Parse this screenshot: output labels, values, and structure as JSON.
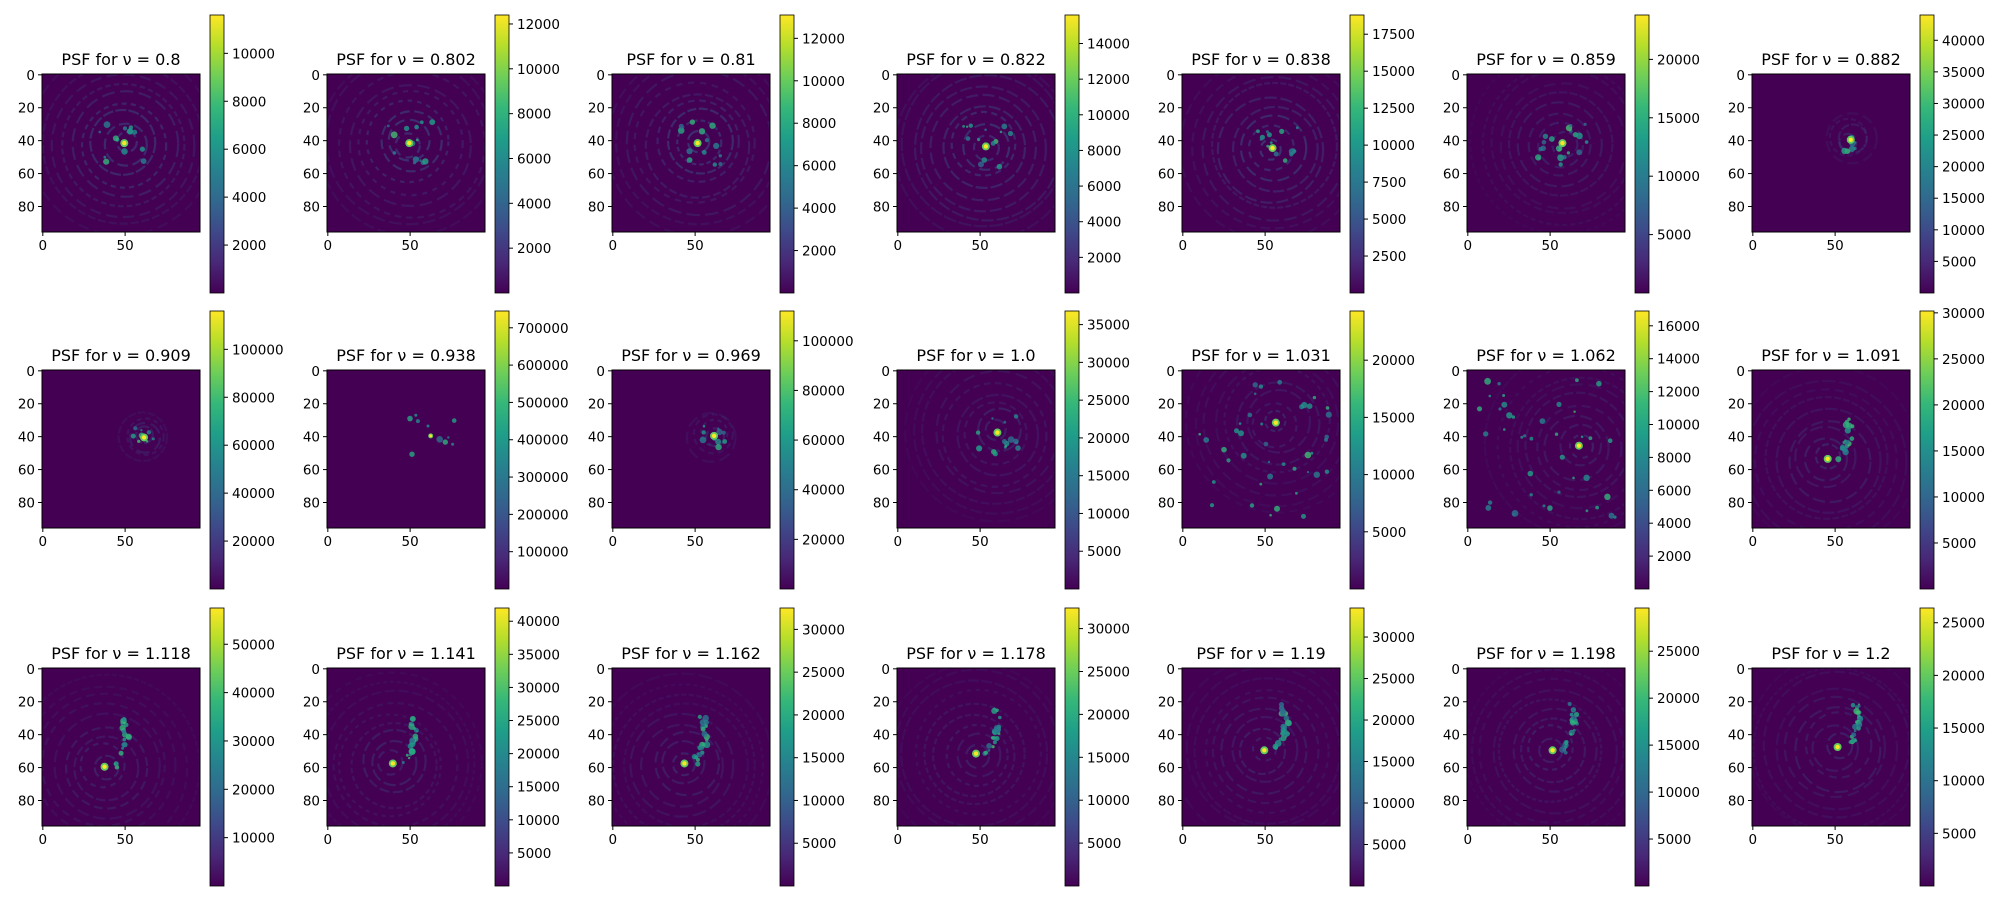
{
  "chart_data": [
    {
      "type": "heatmap",
      "title": "PSF for ν = 0.8",
      "xticks": [
        "0",
        "50"
      ],
      "yticks": [
        "0",
        "20",
        "40",
        "60",
        "80"
      ],
      "colorbar_ticks": [
        "2000",
        "4000",
        "6000",
        "8000",
        "10000"
      ],
      "vmin": 0,
      "vmax": 11600,
      "peak": [
        50,
        42
      ],
      "pattern": "rings"
    },
    {
      "type": "heatmap",
      "title": "PSF for ν = 0.802",
      "xticks": [
        "0",
        "50"
      ],
      "yticks": [
        "0",
        "20",
        "40",
        "60",
        "80"
      ],
      "colorbar_ticks": [
        "2000",
        "4000",
        "6000",
        "8000",
        "10000",
        "12000"
      ],
      "vmin": 0,
      "vmax": 12400,
      "peak": [
        50,
        42
      ],
      "pattern": "rings"
    },
    {
      "type": "heatmap",
      "title": "PSF for ν = 0.81",
      "xticks": [
        "0",
        "50"
      ],
      "yticks": [
        "0",
        "20",
        "40",
        "60",
        "80"
      ],
      "colorbar_ticks": [
        "2000",
        "4000",
        "6000",
        "8000",
        "10000",
        "12000"
      ],
      "vmin": 0,
      "vmax": 13100,
      "peak": [
        52,
        42
      ],
      "pattern": "rings"
    },
    {
      "type": "heatmap",
      "title": "PSF for ν = 0.822",
      "xticks": [
        "0",
        "50"
      ],
      "yticks": [
        "0",
        "20",
        "40",
        "60",
        "80"
      ],
      "colorbar_ticks": [
        "2000",
        "4000",
        "6000",
        "8000",
        "10000",
        "12000",
        "14000"
      ],
      "vmin": 0,
      "vmax": 15600,
      "peak": [
        54,
        44
      ],
      "pattern": "rings"
    },
    {
      "type": "heatmap",
      "title": "PSF for ν = 0.838",
      "xticks": [
        "0",
        "50"
      ],
      "yticks": [
        "0",
        "20",
        "40",
        "60",
        "80"
      ],
      "colorbar_ticks": [
        "2500",
        "5000",
        "7500",
        "10000",
        "12500",
        "15000",
        "17500"
      ],
      "vmin": 0,
      "vmax": 18800,
      "peak": [
        55,
        45
      ],
      "pattern": "rings"
    },
    {
      "type": "heatmap",
      "title": "PSF for ν = 0.859",
      "xticks": [
        "0",
        "50"
      ],
      "yticks": [
        "0",
        "20",
        "40",
        "60",
        "80"
      ],
      "colorbar_ticks": [
        "5000",
        "10000",
        "15000",
        "20000"
      ],
      "vmin": 0,
      "vmax": 23800,
      "peak": [
        58,
        42
      ],
      "pattern": "speckle"
    },
    {
      "type": "heatmap",
      "title": "PSF for ν = 0.882",
      "xticks": [
        "0",
        "50"
      ],
      "yticks": [
        "0",
        "20",
        "40",
        "60",
        "80"
      ],
      "colorbar_ticks": [
        "5000",
        "10000",
        "15000",
        "20000",
        "25000",
        "30000",
        "35000",
        "40000"
      ],
      "vmin": 0,
      "vmax": 44000,
      "peak": [
        60,
        40
      ],
      "pattern": "halo"
    },
    {
      "type": "heatmap",
      "title": "PSF for ν = 0.909",
      "xticks": [
        "0",
        "50"
      ],
      "yticks": [
        "0",
        "20",
        "40",
        "60",
        "80"
      ],
      "colorbar_ticks": [
        "20000",
        "40000",
        "60000",
        "80000",
        "100000"
      ],
      "vmin": 0,
      "vmax": 116000,
      "peak": [
        62,
        41
      ],
      "pattern": "halo"
    },
    {
      "type": "heatmap",
      "title": "PSF for ν = 0.938",
      "xticks": [
        "0",
        "50"
      ],
      "yticks": [
        "0",
        "20",
        "40",
        "60",
        "80"
      ],
      "colorbar_ticks": [
        "100000",
        "200000",
        "300000",
        "400000",
        "500000",
        "600000",
        "700000"
      ],
      "vmin": 0,
      "vmax": 745000,
      "peak": [
        63,
        40
      ],
      "pattern": "point"
    },
    {
      "type": "heatmap",
      "title": "PSF for ν = 0.969",
      "xticks": [
        "0",
        "50"
      ],
      "yticks": [
        "0",
        "20",
        "40",
        "60",
        "80"
      ],
      "colorbar_ticks": [
        "20000",
        "40000",
        "60000",
        "80000",
        "100000"
      ],
      "vmin": 0,
      "vmax": 112000,
      "peak": [
        62,
        40
      ],
      "pattern": "ring-small"
    },
    {
      "type": "heatmap",
      "title": "PSF for ν = 1.0",
      "xticks": [
        "0",
        "50"
      ],
      "yticks": [
        "0",
        "20",
        "40",
        "60",
        "80"
      ],
      "colorbar_ticks": [
        "5000",
        "10000",
        "15000",
        "20000",
        "25000",
        "30000",
        "35000"
      ],
      "vmin": 0,
      "vmax": 36800,
      "peak": [
        61,
        38
      ],
      "pattern": "ring-broken"
    },
    {
      "type": "heatmap",
      "title": "PSF for ν = 1.031",
      "xticks": [
        "0",
        "50"
      ],
      "yticks": [
        "0",
        "20",
        "40",
        "60",
        "80"
      ],
      "colorbar_ticks": [
        "5000",
        "10000",
        "15000",
        "20000"
      ],
      "vmin": 0,
      "vmax": 24300,
      "peak": [
        57,
        32
      ],
      "pattern": "speckle-wide"
    },
    {
      "type": "heatmap",
      "title": "PSF for ν = 1.062",
      "xticks": [
        "0",
        "50"
      ],
      "yticks": [
        "0",
        "20",
        "40",
        "60",
        "80"
      ],
      "colorbar_ticks": [
        "2000",
        "4000",
        "6000",
        "8000",
        "10000",
        "12000",
        "14000",
        "16000"
      ],
      "vmin": 0,
      "vmax": 16900,
      "peak": [
        68,
        46
      ],
      "pattern": "speckle-wide"
    },
    {
      "type": "heatmap",
      "title": "PSF for ν = 1.091",
      "xticks": [
        "0",
        "50"
      ],
      "yticks": [
        "0",
        "20",
        "40",
        "60",
        "80"
      ],
      "colorbar_ticks": [
        "5000",
        "10000",
        "15000",
        "20000",
        "25000",
        "30000"
      ],
      "vmin": 0,
      "vmax": 30200,
      "peak": [
        46,
        54
      ],
      "pattern": "arc"
    },
    {
      "type": "heatmap",
      "title": "PSF for ν = 1.118",
      "xticks": [
        "0",
        "50"
      ],
      "yticks": [
        "0",
        "20",
        "40",
        "60",
        "80"
      ],
      "colorbar_ticks": [
        "10000",
        "20000",
        "30000",
        "40000",
        "50000"
      ],
      "vmin": 0,
      "vmax": 57500,
      "peak": [
        38,
        60
      ],
      "pattern": "arc"
    },
    {
      "type": "heatmap",
      "title": "PSF for ν = 1.141",
      "xticks": [
        "0",
        "50"
      ],
      "yticks": [
        "0",
        "20",
        "40",
        "60",
        "80"
      ],
      "colorbar_ticks": [
        "5000",
        "10000",
        "15000",
        "20000",
        "25000",
        "30000",
        "35000",
        "40000"
      ],
      "vmin": 0,
      "vmax": 42000,
      "peak": [
        40,
        58
      ],
      "pattern": "caustic"
    },
    {
      "type": "heatmap",
      "title": "PSF for ν = 1.162",
      "xticks": [
        "0",
        "50"
      ],
      "yticks": [
        "0",
        "20",
        "40",
        "60",
        "80"
      ],
      "colorbar_ticks": [
        "5000",
        "10000",
        "15000",
        "20000",
        "25000",
        "30000"
      ],
      "vmin": 0,
      "vmax": 32500,
      "peak": [
        44,
        58
      ],
      "pattern": "caustic"
    },
    {
      "type": "heatmap",
      "title": "PSF for ν = 1.178",
      "xticks": [
        "0",
        "50"
      ],
      "yticks": [
        "0",
        "20",
        "40",
        "60",
        "80"
      ],
      "colorbar_ticks": [
        "5000",
        "10000",
        "15000",
        "20000",
        "25000",
        "30000"
      ],
      "vmin": 0,
      "vmax": 32400,
      "peak": [
        48,
        52
      ],
      "pattern": "caustic"
    },
    {
      "type": "heatmap",
      "title": "PSF for ν = 1.19",
      "xticks": [
        "0",
        "50"
      ],
      "yticks": [
        "0",
        "20",
        "40",
        "60",
        "80"
      ],
      "colorbar_ticks": [
        "5000",
        "10000",
        "15000",
        "20000",
        "25000",
        "30000"
      ],
      "vmin": 0,
      "vmax": 33500,
      "peak": [
        50,
        50
      ],
      "pattern": "caustic"
    },
    {
      "type": "heatmap",
      "title": "PSF for ν = 1.198",
      "xticks": [
        "0",
        "50"
      ],
      "yticks": [
        "0",
        "20",
        "40",
        "60",
        "80"
      ],
      "colorbar_ticks": [
        "5000",
        "10000",
        "15000",
        "20000",
        "25000"
      ],
      "vmin": 0,
      "vmax": 29600,
      "peak": [
        52,
        50
      ],
      "pattern": "caustic"
    },
    {
      "type": "heatmap",
      "title": "PSF for ν = 1.2",
      "xticks": [
        "0",
        "50"
      ],
      "yticks": [
        "0",
        "20",
        "40",
        "60",
        "80"
      ],
      "colorbar_ticks": [
        "5000",
        "10000",
        "15000",
        "20000",
        "25000"
      ],
      "vmin": 0,
      "vmax": 26400,
      "peak": [
        52,
        48
      ],
      "pattern": "caustic"
    }
  ],
  "colors": {
    "viridis": [
      "#440154",
      "#482878",
      "#3e4989",
      "#31688e",
      "#26828e",
      "#1f9e89",
      "#35b779",
      "#6ece58",
      "#b5de2b",
      "#fde725"
    ],
    "background": "#440154"
  }
}
